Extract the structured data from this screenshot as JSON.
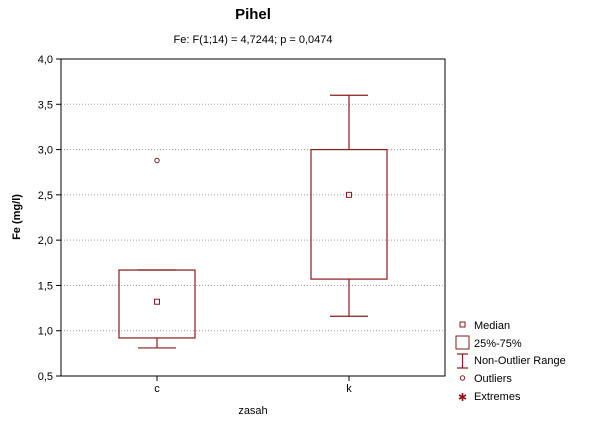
{
  "chart_data": {
    "type": "boxplot",
    "title": "Pihel",
    "subtitle": "Fe:    F(1;14) = 4,7244;  p = 0,0474",
    "xlabel": "zasah",
    "ylabel": "Fe (mg/l)",
    "categories": [
      "c",
      "k"
    ],
    "ylim": [
      0.5,
      4.0
    ],
    "y_ticks": [
      "0,5",
      "1,0",
      "1,5",
      "2,0",
      "2,5",
      "3,0",
      "3,5",
      "4,0"
    ],
    "grid": true,
    "boxes": [
      {
        "category": "c",
        "median": 1.32,
        "q1": 0.92,
        "q3": 1.67,
        "whisker_low": 0.81,
        "whisker_high": 1.67,
        "outliers": [
          2.88
        ],
        "extremes": []
      },
      {
        "category": "k",
        "median": 2.5,
        "q1": 1.57,
        "q3": 3.0,
        "whisker_low": 1.16,
        "whisker_high": 3.6,
        "outliers": [],
        "extremes": []
      }
    ],
    "legend": {
      "position": "bottom-right",
      "entries": [
        "Median",
        "25%-75%",
        "Non-Outlier Range",
        "Outliers",
        "Extremes"
      ]
    },
    "color": "#8b1a1a"
  }
}
